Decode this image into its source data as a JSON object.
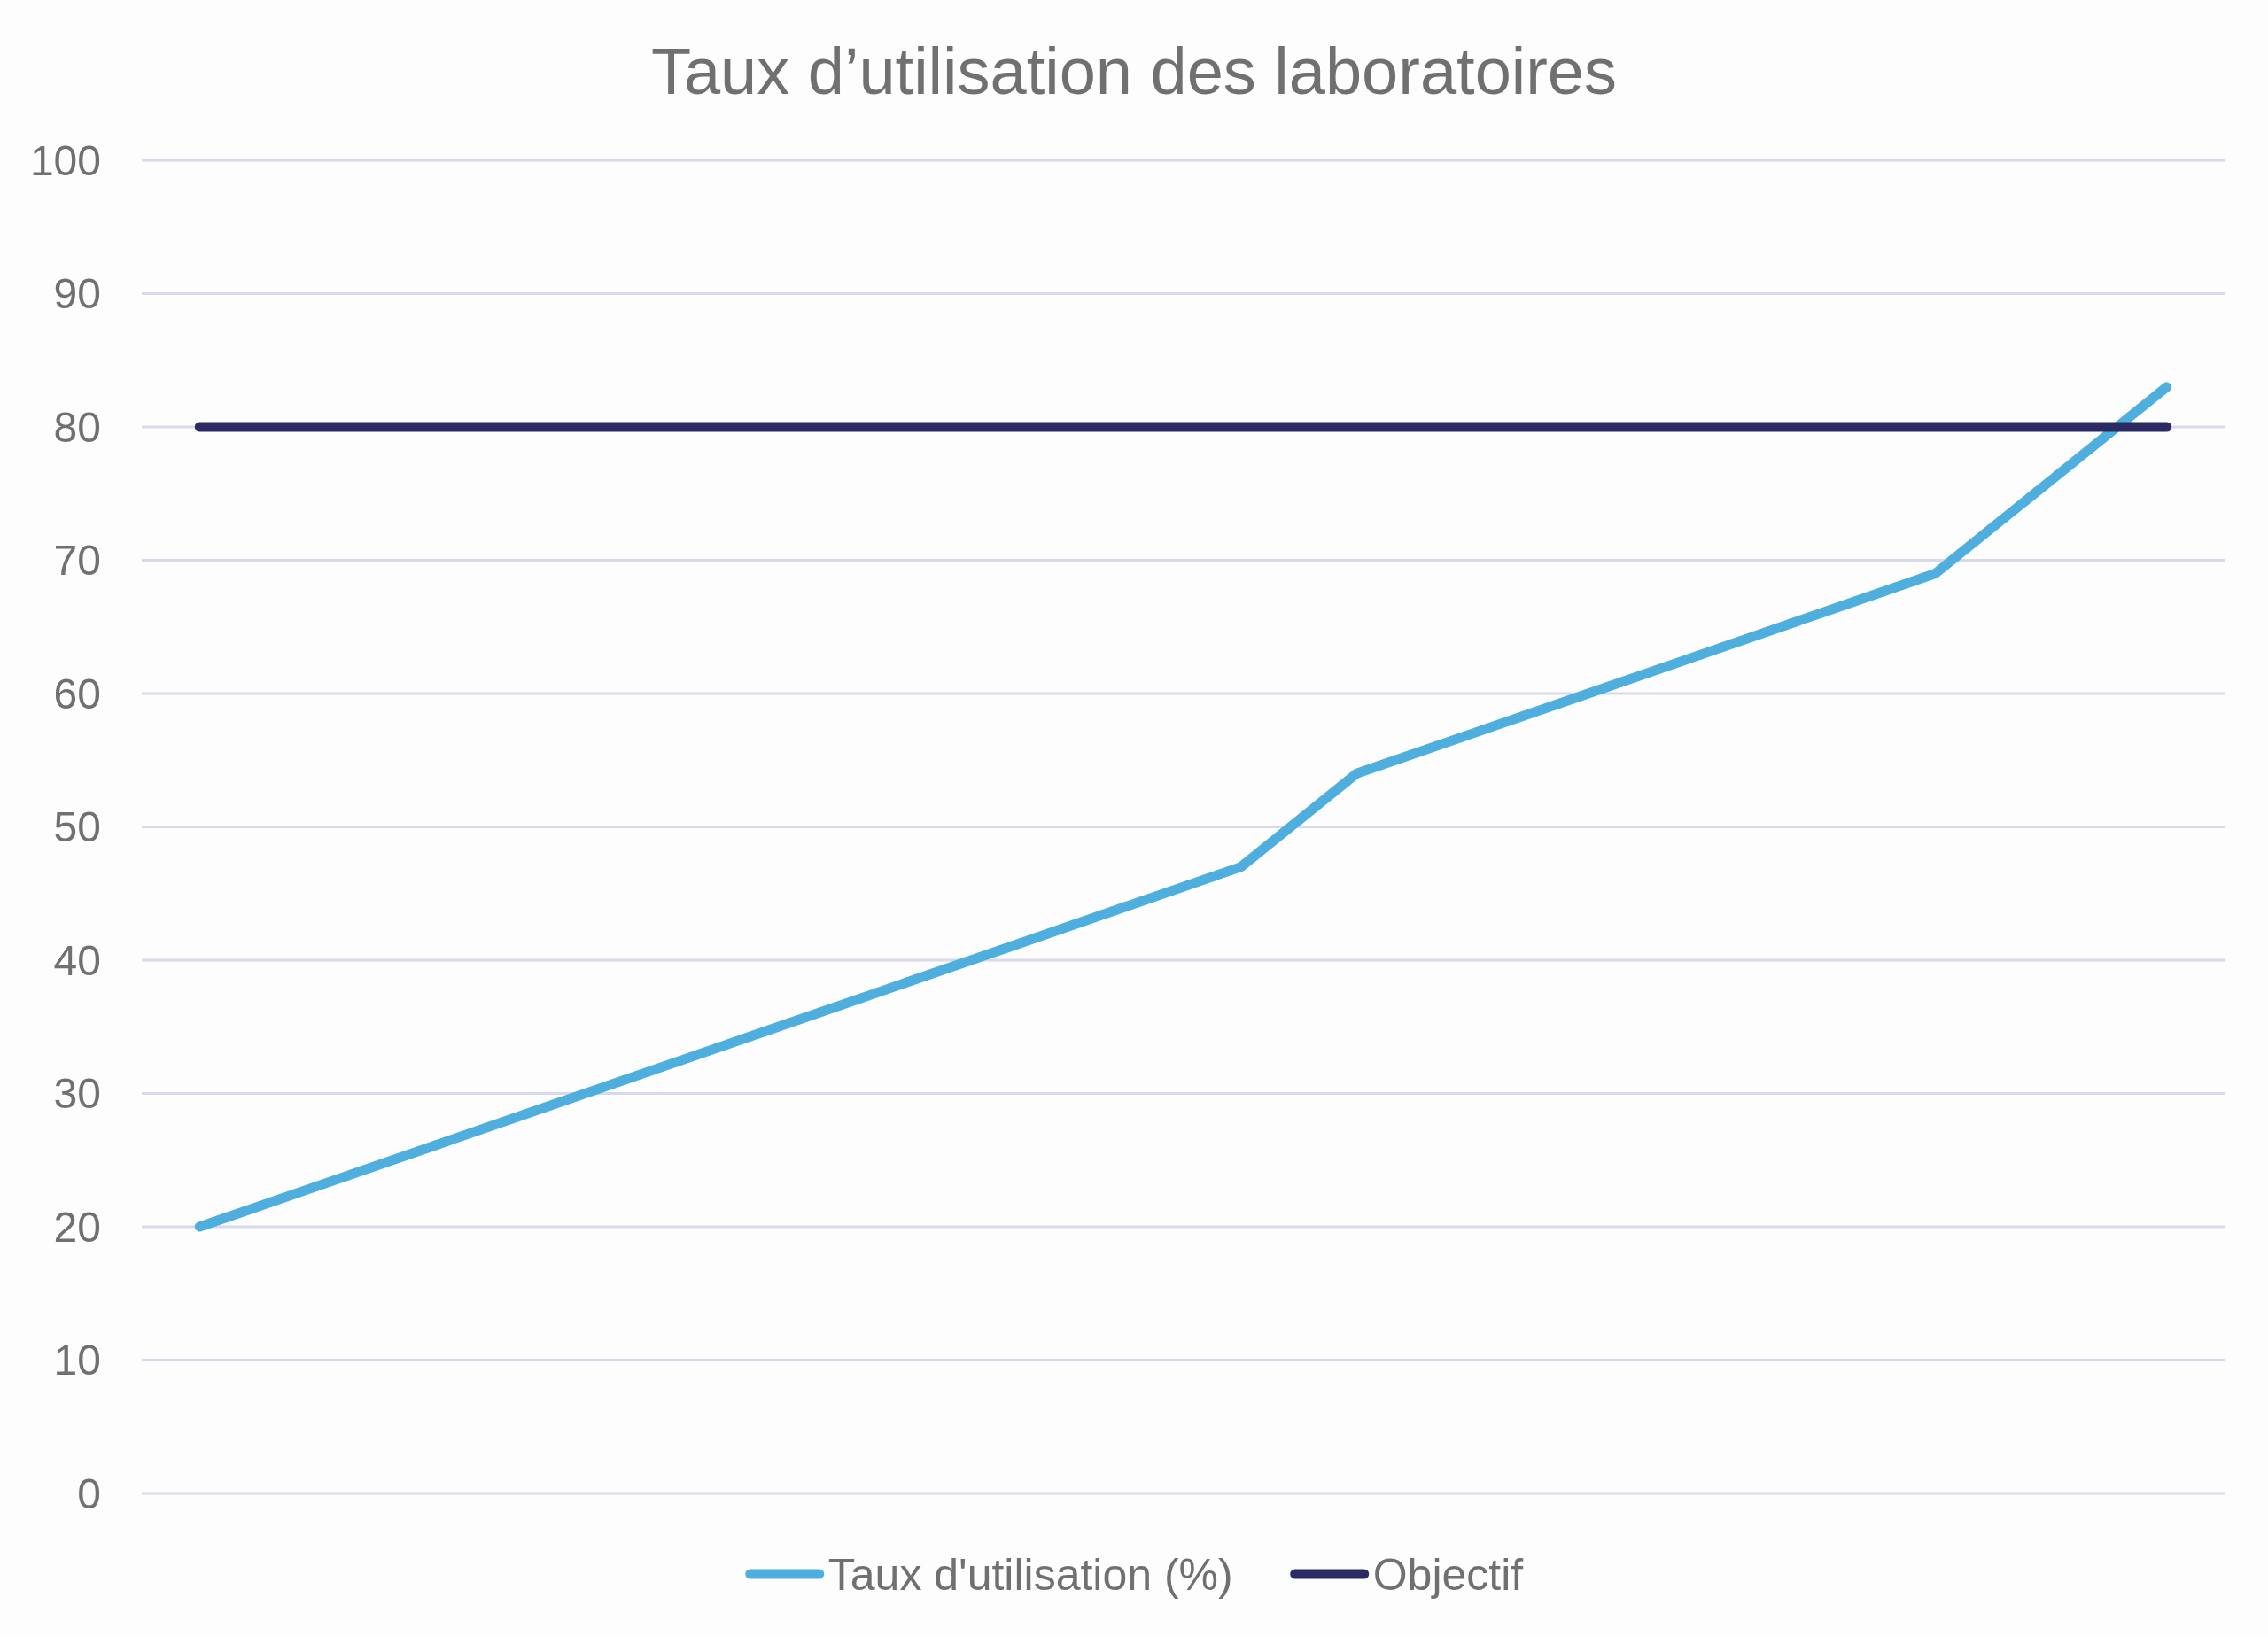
{
  "chart_data": {
    "type": "line",
    "title": "Taux d’utilisation des laboratoires",
    "categories": [
      null,
      null,
      null,
      null,
      null,
      null,
      null,
      null,
      null,
      null,
      null,
      null,
      null,
      null,
      null,
      null,
      null,
      null
    ],
    "series": [
      {
        "name": "Taux d'utilisation (%)",
        "color": "#4eafdf",
        "values": [
          20,
          23,
          26,
          29,
          32,
          35,
          38,
          41,
          44,
          47,
          54,
          57,
          60,
          63,
          66,
          69,
          76,
          83
        ]
      },
      {
        "name": "Objectif",
        "color": "#2b2a62",
        "values": [
          80,
          80,
          80,
          80,
          80,
          80,
          80,
          80,
          80,
          80,
          80,
          80,
          80,
          80,
          80,
          80,
          80,
          80
        ]
      }
    ],
    "ylim": [
      0,
      100
    ],
    "yticks": [
      0,
      10,
      20,
      30,
      40,
      50,
      60,
      70,
      80,
      90,
      100
    ],
    "grid": "y",
    "legend": "bottom",
    "tick_labels": "y"
  }
}
